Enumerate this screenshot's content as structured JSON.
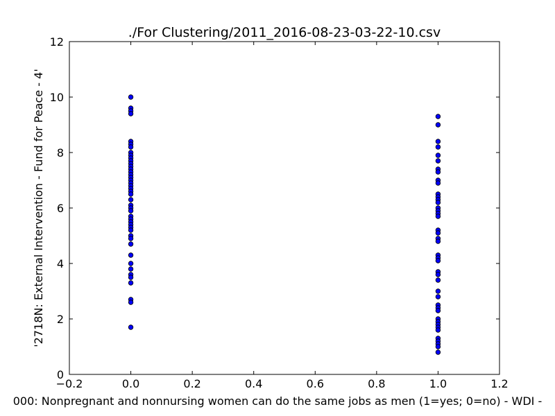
{
  "chart_data": {
    "type": "scatter",
    "title": "./For Clustering/2011_2016-08-23-03-22-10.csv",
    "xlabel": "000: Nonpregnant and nonnursing women can do the same jobs as men  (1=yes; 0=no) - WDI -",
    "ylabel": "'2718N: External Intervention - Fund for Peace - 4'",
    "xlim": [
      -0.2,
      1.2
    ],
    "ylim": [
      0,
      12
    ],
    "xticks": [
      "−0.2",
      "0.0",
      "0.2",
      "0.4",
      "0.6",
      "0.8",
      "1.0",
      "1.2"
    ],
    "yticks": [
      "0",
      "2",
      "4",
      "6",
      "8",
      "10",
      "12"
    ],
    "grid": false,
    "marker_color": "#0000ff",
    "marker_edge_color": "#000000",
    "series": [
      {
        "x": 0.0,
        "y": [
          10.0,
          9.6,
          9.5,
          9.4,
          8.4,
          8.3,
          8.2,
          8.0,
          7.9,
          7.8,
          7.7,
          7.6,
          7.5,
          7.4,
          7.3,
          7.2,
          7.1,
          7.0,
          6.9,
          6.8,
          6.7,
          6.6,
          6.5,
          6.3,
          6.1,
          6.0,
          5.9,
          5.7,
          5.6,
          5.5,
          5.4,
          5.3,
          5.2,
          5.0,
          4.9,
          4.7,
          4.3,
          4.0,
          3.8,
          3.6,
          3.5,
          3.3,
          2.7,
          2.6,
          1.7
        ]
      },
      {
        "x": 1.0,
        "y": [
          9.3,
          9.0,
          8.4,
          8.2,
          7.9,
          7.7,
          7.4,
          7.3,
          7.0,
          6.9,
          6.5,
          6.4,
          6.3,
          6.2,
          6.0,
          5.9,
          5.8,
          5.7,
          5.2,
          5.1,
          4.9,
          4.8,
          4.3,
          4.2,
          4.1,
          3.7,
          3.6,
          3.4,
          3.0,
          2.8,
          2.5,
          2.4,
          2.3,
          2.0,
          1.9,
          1.8,
          1.7,
          1.6,
          1.3,
          1.2,
          1.1,
          1.0,
          0.8
        ]
      }
    ]
  }
}
